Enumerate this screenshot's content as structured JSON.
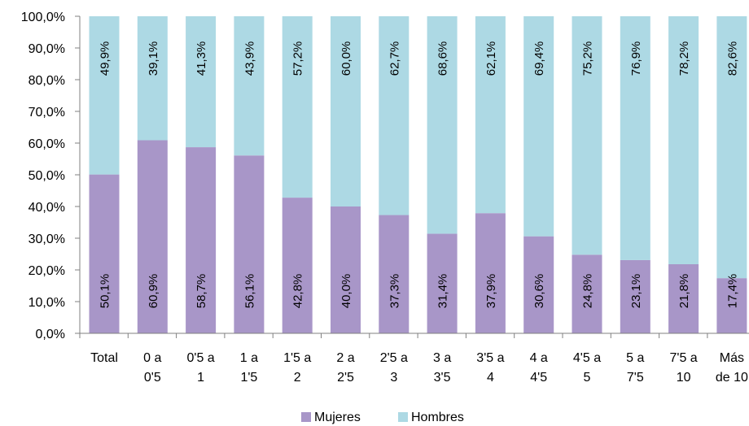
{
  "chart_data": {
    "type": "bar",
    "stacked": true,
    "percent": true,
    "categories": [
      [
        "Total"
      ],
      [
        "0 a",
        "0'5"
      ],
      [
        "0'5 a",
        "1"
      ],
      [
        "1 a",
        "1'5"
      ],
      [
        "1'5 a",
        "2"
      ],
      [
        "2 a",
        "2'5"
      ],
      [
        "2'5 a",
        "3"
      ],
      [
        "3 a",
        "3'5"
      ],
      [
        "3'5 a",
        "4"
      ],
      [
        "4 a",
        "4'5"
      ],
      [
        "4'5 a",
        "5"
      ],
      [
        "5 a",
        "7'5"
      ],
      [
        "7'5 a",
        "10"
      ],
      [
        "Más",
        "de 10"
      ]
    ],
    "series": [
      {
        "name": "Mujeres",
        "color": "#A896C8",
        "values": [
          50.1,
          60.9,
          58.7,
          56.1,
          42.8,
          40.0,
          37.3,
          31.4,
          37.9,
          30.6,
          24.8,
          23.1,
          21.8,
          17.4
        ],
        "labels": [
          "50,1%",
          "60,9%",
          "58,7%",
          "56,1%",
          "42,8%",
          "40,0%",
          "37,3%",
          "31,4%",
          "37,9%",
          "30,6%",
          "24,8%",
          "23,1%",
          "21,8%",
          "17,4%"
        ]
      },
      {
        "name": "Hombres",
        "color": "#ADD9E4",
        "values": [
          49.9,
          39.1,
          41.3,
          43.9,
          57.2,
          60.0,
          62.7,
          68.6,
          62.1,
          69.4,
          75.2,
          76.9,
          78.2,
          82.6
        ],
        "labels": [
          "49,9%",
          "39,1%",
          "41,3%",
          "43,9%",
          "57,2%",
          "60,0%",
          "62,7%",
          "68,6%",
          "62,1%",
          "69,4%",
          "75,2%",
          "76,9%",
          "78,2%",
          "82,6%"
        ]
      }
    ],
    "y_ticks": [
      "0,0%",
      "10,0%",
      "20,0%",
      "30,0%",
      "40,0%",
      "50,0%",
      "60,0%",
      "70,0%",
      "80,0%",
      "90,0%",
      "100,0%"
    ],
    "ylim": [
      0,
      100
    ],
    "grid": false,
    "legend_position": "bottom"
  }
}
